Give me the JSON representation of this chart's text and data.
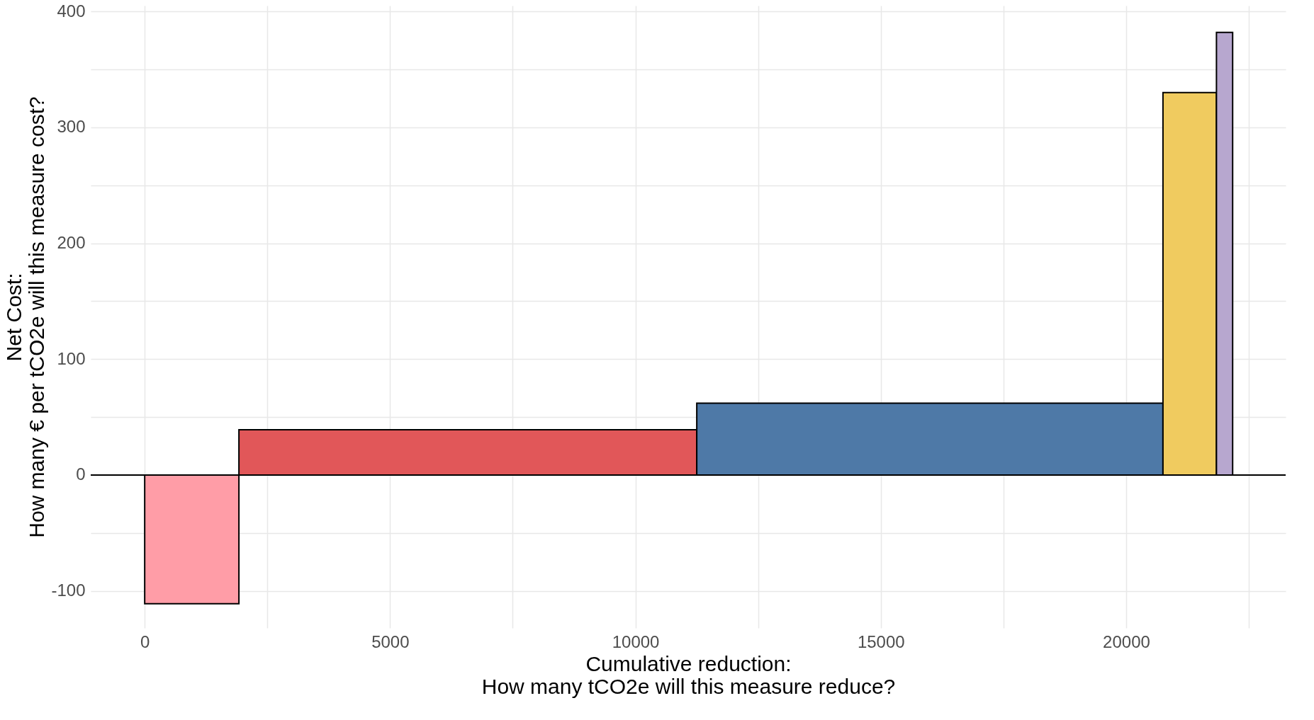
{
  "chart_data": {
    "type": "histogram",
    "xlabel": "Cumulative reduction:\nHow many tCO2e will this measure reduce?",
    "ylabel": "Net Cost:\nHow many € per tCO2e will this measure cost?",
    "bins": [
      0,
      1920,
      11250,
      20750,
      21840,
      22170
    ],
    "values": [
      -111,
      39,
      62,
      330,
      382
    ],
    "colors": [
      "#ff9da7",
      "#e15759",
      "#4e79a7",
      "#f0cb5f",
      "#b7a7cf"
    ],
    "xlim": [
      -1100,
      23250
    ],
    "xticks": [
      0,
      {
        "value": 2500,
        "label": null
      },
      5000,
      {
        "value": 7500,
        "label": null
      },
      10000,
      {
        "value": 12500,
        "label": null
      },
      15000,
      {
        "value": 17500,
        "label": null
      },
      20000,
      {
        "value": 22500,
        "label": null
      }
    ],
    "ylim": [
      -132,
      405
    ],
    "yticks": [
      -100,
      {
        "value": -50,
        "label": null
      },
      0,
      {
        "value": 50,
        "label": null
      },
      100,
      {
        "value": 150,
        "label": null
      },
      200,
      {
        "value": 250,
        "label": null
      },
      300,
      {
        "value": 350,
        "label": null
      },
      400
    ],
    "ref_lines": [
      {
        "axis": "y",
        "value": 0,
        "color": "#000000"
      }
    ],
    "grid": true
  }
}
